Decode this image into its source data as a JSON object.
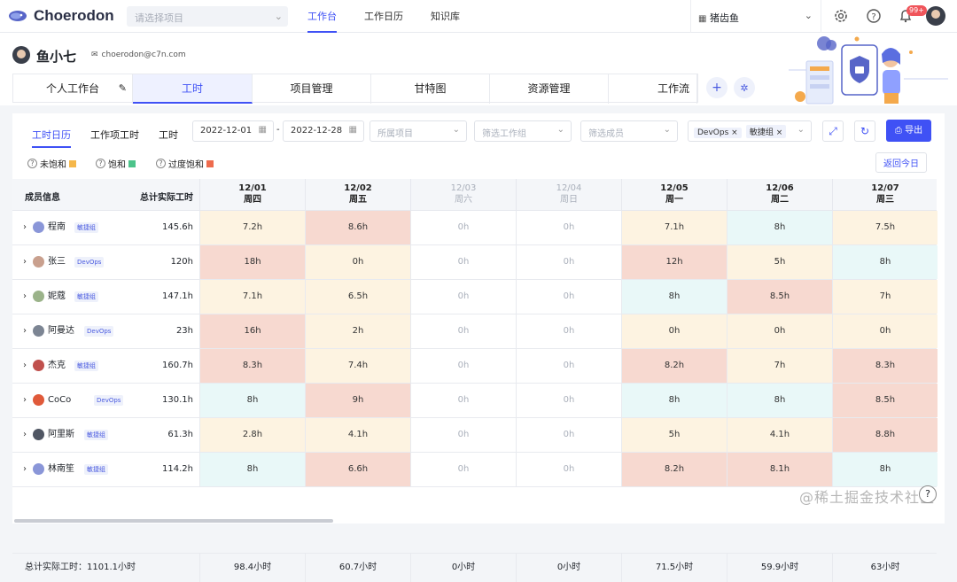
{
  "app": {
    "logo_text": "Choerodon",
    "project_placeholder": "请选择项目",
    "nav": [
      "工作台",
      "工作日历",
      "知识库"
    ],
    "org_name": "猪齿鱼",
    "notification_count": "99+"
  },
  "user": {
    "name": "鱼小七",
    "email": "choerodon@c7n.com"
  },
  "tabs": [
    "个人工作台",
    "工时",
    "项目管理",
    "甘特图",
    "资源管理",
    "工作流"
  ],
  "subtabs": [
    "工时日历",
    "工作项工时",
    "工时"
  ],
  "filters": {
    "date_start": "2022-12-01",
    "date_sep": "-",
    "date_end": "2022-12-28",
    "project_placeholder": "所属项目",
    "group_placeholder": "筛选工作组",
    "member_placeholder": "筛选成员",
    "team_tags": [
      "DevOps",
      "敏捷组"
    ]
  },
  "export_label": "导出",
  "legend": [
    {
      "label": "未饱和",
      "color": "#f5b74a"
    },
    {
      "label": "饱和",
      "color": "#4cc38a"
    },
    {
      "label": "过度饱和",
      "color": "#ee6b4d"
    }
  ],
  "today_button": "返回今日",
  "table": {
    "col_member": "成员信息",
    "col_total": "总计实际工时",
    "days": [
      {
        "date": "12/01",
        "weekday": "周四",
        "weekend": false
      },
      {
        "date": "12/02",
        "weekday": "周五",
        "weekend": false
      },
      {
        "date": "12/03",
        "weekday": "周六",
        "weekend": true
      },
      {
        "date": "12/04",
        "weekday": "周日",
        "weekend": true
      },
      {
        "date": "12/05",
        "weekday": "周一",
        "weekend": false
      },
      {
        "date": "12/06",
        "weekday": "周二",
        "weekend": false
      },
      {
        "date": "12/07",
        "weekday": "周三",
        "weekend": false
      }
    ],
    "rows": [
      {
        "name": "程南",
        "team": "敏捷组",
        "total": "145.6h",
        "hours": [
          "7.2h",
          "8.6h",
          "0h",
          "0h",
          "7.1h",
          "8h",
          "7.5h"
        ],
        "status": [
          "u",
          "o",
          "z",
          "z",
          "u",
          "s",
          "u"
        ]
      },
      {
        "name": "张三",
        "team": "DevOps",
        "total": "120h",
        "hours": [
          "18h",
          "0h",
          "0h",
          "0h",
          "12h",
          "5h",
          "8h"
        ],
        "status": [
          "o",
          "u",
          "z",
          "z",
          "o",
          "u",
          "s"
        ]
      },
      {
        "name": "妮蔻",
        "team": "敏捷组",
        "total": "147.1h",
        "hours": [
          "7.1h",
          "6.5h",
          "0h",
          "0h",
          "8h",
          "8.5h",
          "7h"
        ],
        "status": [
          "u",
          "u",
          "z",
          "z",
          "s",
          "o",
          "u"
        ]
      },
      {
        "name": "阿曼达",
        "team": "DevOps",
        "total": "23h",
        "hours": [
          "16h",
          "2h",
          "0h",
          "0h",
          "0h",
          "0h",
          "0h"
        ],
        "status": [
          "o",
          "u",
          "z",
          "z",
          "u",
          "u",
          "u"
        ]
      },
      {
        "name": "杰克",
        "team": "敏捷组",
        "total": "160.7h",
        "hours": [
          "8.3h",
          "7.4h",
          "0h",
          "0h",
          "8.2h",
          "7h",
          "8.3h"
        ],
        "status": [
          "o",
          "u",
          "z",
          "z",
          "o",
          "u",
          "o"
        ]
      },
      {
        "name": "CoCo",
        "team": "DevOps",
        "total": "130.1h",
        "hours": [
          "8h",
          "9h",
          "0h",
          "0h",
          "8h",
          "8h",
          "8.5h"
        ],
        "status": [
          "s",
          "o",
          "z",
          "z",
          "s",
          "s",
          "o"
        ]
      },
      {
        "name": "阿里斯",
        "team": "敏捷组",
        "total": "61.3h",
        "hours": [
          "2.8h",
          "4.1h",
          "0h",
          "0h",
          "5h",
          "4.1h",
          "8.8h"
        ],
        "status": [
          "u",
          "u",
          "z",
          "z",
          "u",
          "u",
          "o"
        ]
      },
      {
        "name": "林南笙",
        "team": "敏捷组",
        "total": "114.2h",
        "hours": [
          "8h",
          "6.6h",
          "0h",
          "0h",
          "8.2h",
          "8.1h",
          "8h"
        ],
        "status": [
          "s",
          "o",
          "z",
          "z",
          "o",
          "o",
          "s"
        ]
      }
    ],
    "footer_label": "总计实际工时：1101.1小时",
    "footer_totals": [
      "98.4小时",
      "60.7小时",
      "0小时",
      "0小时",
      "71.5小时",
      "59.9小时",
      "63小时"
    ]
  },
  "watermark": "@稀土掘金技术社区",
  "colors": {
    "accent": "#3f51f5",
    "under": "#fdf3e1",
    "saturated": "#e9f8f8",
    "over": "#f7d9d0"
  }
}
